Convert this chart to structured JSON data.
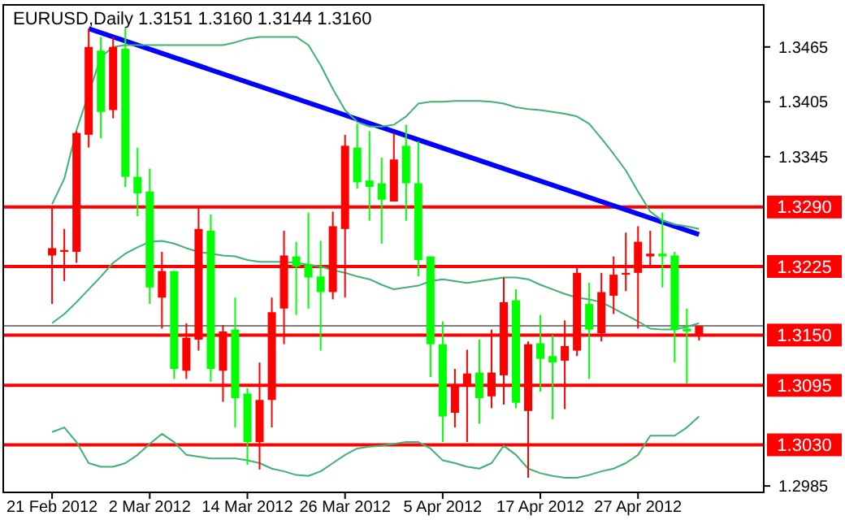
{
  "chart_data": {
    "type": "candlestick",
    "title": "EURUSD,Daily  1.3151 1.3160 1.3144 1.3160",
    "categories": [
      "21 Feb 2012",
      null,
      null,
      null,
      null,
      null,
      null,
      null,
      "2 Mar 2012",
      null,
      null,
      null,
      null,
      null,
      null,
      null,
      "14 Mar 2012",
      null,
      null,
      null,
      null,
      null,
      null,
      null,
      "26 Mar 2012",
      null,
      null,
      null,
      null,
      null,
      null,
      null,
      "5 Apr 2012",
      null,
      null,
      null,
      null,
      null,
      null,
      null,
      "17 Apr 2012",
      null,
      null,
      null,
      null,
      null,
      null,
      null,
      "27 Apr 2012",
      null,
      null,
      null,
      null,
      null
    ],
    "ohlc": [
      [
        1.3237,
        1.3291,
        1.3184,
        1.3245
      ],
      [
        1.3241,
        1.3266,
        1.3209,
        1.3243
      ],
      [
        1.3241,
        1.3373,
        1.3229,
        1.3371
      ],
      [
        1.3369,
        1.3485,
        1.3355,
        1.3465
      ],
      [
        1.3461,
        1.3476,
        1.3365,
        1.3394
      ],
      [
        1.3396,
        1.3476,
        1.3387,
        1.3465
      ],
      [
        1.3463,
        1.3485,
        1.3312,
        1.3323
      ],
      [
        1.3323,
        1.3355,
        1.328,
        1.3305
      ],
      [
        1.3307,
        1.3332,
        1.3184,
        1.3202
      ],
      [
        1.3191,
        1.3241,
        1.3157,
        1.322
      ],
      [
        1.322,
        1.322,
        1.3102,
        1.3113
      ],
      [
        1.3111,
        1.3163,
        1.3102,
        1.3147
      ],
      [
        1.3145,
        1.3291,
        1.3133,
        1.3266
      ],
      [
        1.3264,
        1.3282,
        1.3099,
        1.3113
      ],
      [
        1.3111,
        1.3161,
        1.3077,
        1.3154
      ],
      [
        1.3156,
        1.3191,
        1.3049,
        1.3081
      ],
      [
        1.3086,
        1.3092,
        1.3008,
        1.3033
      ],
      [
        1.3033,
        1.312,
        1.3003,
        1.3079
      ],
      [
        1.3079,
        1.3191,
        1.3049,
        1.3175
      ],
      [
        1.3179,
        1.3264,
        1.314,
        1.3237
      ],
      [
        1.3236,
        1.3252,
        1.3172,
        1.3225
      ],
      [
        1.3227,
        1.3284,
        1.3179,
        1.3213
      ],
      [
        1.3214,
        1.3253,
        1.3133,
        1.3197
      ],
      [
        1.3197,
        1.3285,
        1.3189,
        1.3269
      ],
      [
        1.3266,
        1.3369,
        1.3191,
        1.3357
      ],
      [
        1.3355,
        1.3381,
        1.331,
        1.3317
      ],
      [
        1.3319,
        1.3373,
        1.3275,
        1.3312
      ],
      [
        1.3316,
        1.3344,
        1.325,
        1.3298
      ],
      [
        1.3296,
        1.3371,
        1.3296,
        1.3342
      ],
      [
        1.3357,
        1.338,
        1.3275,
        1.3316
      ],
      [
        1.3316,
        1.3362,
        1.3214,
        1.3232
      ],
      [
        1.3236,
        1.3236,
        1.3104,
        1.314
      ],
      [
        1.314,
        1.3165,
        1.3033,
        1.3061
      ],
      [
        1.3065,
        1.3113,
        1.3049,
        1.3095
      ],
      [
        1.3095,
        1.3134,
        1.3033,
        1.3108
      ],
      [
        1.3109,
        1.3145,
        1.3053,
        1.3081
      ],
      [
        1.3083,
        1.3156,
        1.307,
        1.3109
      ],
      [
        1.3106,
        1.3213,
        1.3074,
        1.3186
      ],
      [
        1.3188,
        1.32,
        1.307,
        1.3076
      ],
      [
        1.3067,
        1.3143,
        1.2994,
        1.314
      ],
      [
        1.3141,
        1.3172,
        1.3088,
        1.3124
      ],
      [
        1.3127,
        1.315,
        1.3058,
        1.312
      ],
      [
        1.3122,
        1.3166,
        1.3069,
        1.3138
      ],
      [
        1.3133,
        1.3225,
        1.3127,
        1.3218
      ],
      [
        1.3184,
        1.3207,
        1.3102,
        1.3156
      ],
      [
        1.3152,
        1.3218,
        1.3143,
        1.3197
      ],
      [
        1.3193,
        1.3236,
        1.3173,
        1.3216
      ],
      [
        1.3216,
        1.3262,
        1.3198,
        1.3218
      ],
      [
        1.3218,
        1.3269,
        1.3157,
        1.3252
      ],
      [
        1.3236,
        1.3264,
        1.3223,
        1.3239
      ],
      [
        1.3239,
        1.3284,
        1.3202,
        1.3236
      ],
      [
        1.3237,
        1.3241,
        1.312,
        1.3156
      ],
      [
        1.3157,
        1.3179,
        1.3097,
        1.3154
      ],
      [
        1.3151,
        1.316,
        1.3144,
        1.316
      ]
    ],
    "colors": [
      "#ff0000",
      "#ff0000",
      "#ff0000",
      "#ff0000",
      "#00ff00",
      "#ff0000",
      "#00ff00",
      "#00ff00",
      "#00ff00",
      "#ff0000",
      "#00ff00",
      "#ff0000",
      "#ff0000",
      "#00ff00",
      "#ff0000",
      "#00ff00",
      "#00ff00",
      "#ff0000",
      "#ff0000",
      "#ff0000",
      "#00ff00",
      "#00ff00",
      "#00ff00",
      "#ff0000",
      "#ff0000",
      "#00ff00",
      "#00ff00",
      "#00ff00",
      "#ff0000",
      "#00ff00",
      "#00ff00",
      "#00ff00",
      "#00ff00",
      "#ff0000",
      "#ff0000",
      "#00ff00",
      "#ff0000",
      "#ff0000",
      "#00ff00",
      "#ff0000",
      "#00ff00",
      "#00ff00",
      "#ff0000",
      "#ff0000",
      "#00ff00",
      "#ff0000",
      "#ff0000",
      "#ff0000",
      "#ff0000",
      "#ff0000",
      "#00ff00",
      "#00ff00",
      "#00ff00",
      "#ff0000"
    ],
    "series": [
      {
        "type": "line",
        "color": "#0000ff",
        "values": [
          null,
          null,
          null,
          1.3485,
          null,
          null,
          null,
          null,
          null,
          null,
          null,
          null,
          null,
          null,
          null,
          null,
          null,
          null,
          null,
          null,
          null,
          null,
          null,
          null,
          null,
          null,
          null,
          null,
          null,
          null,
          null,
          null,
          null,
          null,
          null,
          null,
          null,
          null,
          null,
          null,
          null,
          null,
          null,
          null,
          null,
          null,
          null,
          null,
          null,
          null,
          null,
          null,
          null,
          1.326
        ]
      },
      {
        "type": "line",
        "color": "#3cb371",
        "values": [
          1.3293,
          1.3321,
          1.3374,
          null,
          1.3454,
          1.3465,
          1.3467,
          1.3467,
          1.3467,
          1.3467,
          1.3467,
          1.3467,
          1.3467,
          1.3467,
          1.3467,
          1.347,
          1.3474,
          1.3476,
          1.3476,
          1.3476,
          1.3476,
          1.3467,
          1.3445,
          1.3419,
          1.3396,
          1.3383,
          1.3378,
          1.3378,
          1.338,
          1.3389,
          1.3403,
          1.3405,
          1.3405,
          1.3406,
          1.3406,
          1.3406,
          1.3405,
          1.3403,
          1.3399,
          1.3397,
          1.3396,
          1.3394,
          1.3392,
          1.3389,
          1.3381,
          1.3365,
          1.3348,
          1.333,
          1.3307,
          1.3285,
          1.3275,
          1.3271,
          1.3269,
          1.3266
        ]
      },
      {
        "type": "line",
        "color": "#3cb371",
        "values": [
          1.3163,
          1.3173,
          1.3186,
          1.32,
          1.3214,
          1.3229,
          1.3239,
          1.3246,
          1.3252,
          1.3253,
          1.325,
          1.3245,
          1.3241,
          1.3239,
          1.3237,
          1.3236,
          1.3232,
          1.323,
          1.323,
          1.323,
          1.3229,
          1.3227,
          1.3225,
          1.3221,
          1.3218,
          1.3214,
          1.3211,
          1.3205,
          1.32,
          1.3202,
          1.3204,
          1.3209,
          1.3211,
          1.3209,
          1.3207,
          1.3209,
          1.3211,
          1.3213,
          1.3213,
          1.3211,
          1.3205,
          1.32,
          1.3195,
          1.3191,
          1.3189,
          1.3186,
          1.3179,
          1.3172,
          1.3165,
          1.3157,
          1.3156,
          1.3156,
          1.3159,
          1.3163
        ]
      },
      {
        "type": "line",
        "color": "#3cb371",
        "values": [
          1.3044,
          1.3049,
          1.3033,
          1.301,
          1.3006,
          1.3006,
          1.301,
          1.3019,
          1.3031,
          1.3042,
          1.3033,
          1.3019,
          1.3017,
          1.3015,
          1.3015,
          1.3015,
          1.3013,
          1.301,
          1.3004,
          1.3001,
          1.2997,
          1.2996,
          1.3001,
          1.301,
          1.3019,
          1.3026,
          1.3028,
          1.3029,
          1.3031,
          1.3033,
          1.3033,
          1.3026,
          1.3013,
          1.301,
          1.3006,
          1.3004,
          1.301,
          1.3029,
          1.3019,
          1.3004,
          1.2999,
          1.2996,
          1.2994,
          1.2994,
          1.2997,
          1.3001,
          1.3004,
          1.301,
          1.3019,
          1.304,
          1.304,
          1.304,
          1.3049,
          1.3061
        ]
      }
    ],
    "ylim": [
      1.2978,
      1.3511
    ],
    "yticks": [
      1.3465,
      1.3405,
      1.3345,
      1.2985
    ],
    "ref_lines": [
      {
        "axis": "y",
        "value": 1.316,
        "color": "#808080"
      },
      {
        "axis": "y",
        "value": 1.329,
        "label": "1.3290",
        "color": "#ff0000"
      },
      {
        "axis": "y",
        "value": 1.3225,
        "label": "1.3225",
        "color": "#ff0000"
      },
      {
        "axis": "y",
        "value": 1.315,
        "label": "1.3150",
        "color": "#ff0000"
      },
      {
        "axis": "y",
        "value": 1.3095,
        "label": "1.3095",
        "color": "#ff0000"
      },
      {
        "axis": "y",
        "value": 1.303,
        "label": "1.3030",
        "color": "#ff0000"
      }
    ]
  }
}
